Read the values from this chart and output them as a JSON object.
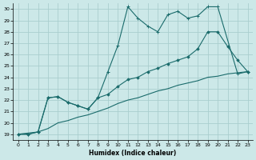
{
  "xlabel": "Humidex (Indice chaleur)",
  "bg_color": "#cce8e8",
  "grid_color": "#aacece",
  "line_color": "#1a6b6b",
  "xlim": [
    -0.5,
    23.5
  ],
  "ylim": [
    18.5,
    30.5
  ],
  "xticks": [
    0,
    1,
    2,
    3,
    4,
    5,
    6,
    7,
    8,
    9,
    10,
    11,
    12,
    13,
    14,
    15,
    16,
    17,
    18,
    19,
    20,
    21,
    22,
    23
  ],
  "yticks": [
    19,
    20,
    21,
    22,
    23,
    24,
    25,
    26,
    27,
    28,
    29,
    30
  ],
  "line1_x": [
    0,
    1,
    2,
    3,
    4,
    5,
    6,
    7,
    8,
    9,
    10,
    11,
    12,
    13,
    14,
    15,
    16,
    17,
    18,
    19,
    20,
    22,
    23
  ],
  "line1_y": [
    19.0,
    19.0,
    19.2,
    22.2,
    22.3,
    21.8,
    21.5,
    21.2,
    22.2,
    24.5,
    26.8,
    30.2,
    29.2,
    28.5,
    28.0,
    29.5,
    29.8,
    29.2,
    29.4,
    30.2,
    30.2,
    24.3,
    24.5
  ],
  "line2_x": [
    0,
    1,
    2,
    3,
    4,
    5,
    6,
    7,
    8,
    9,
    10,
    11,
    12,
    13,
    14,
    15,
    16,
    17,
    18,
    19,
    20,
    21,
    22,
    23
  ],
  "line2_y": [
    19.0,
    19.1,
    19.2,
    19.5,
    20.0,
    20.2,
    20.5,
    20.7,
    21.0,
    21.3,
    21.7,
    22.0,
    22.2,
    22.5,
    22.8,
    23.0,
    23.3,
    23.5,
    23.7,
    24.0,
    24.1,
    24.3,
    24.4,
    24.5
  ],
  "line3_x": [
    0,
    1,
    2,
    3,
    4,
    5,
    6,
    7,
    8,
    9,
    10,
    11,
    12,
    13,
    14,
    15,
    16,
    17,
    18,
    19,
    20,
    21,
    22,
    23
  ],
  "line3_y": [
    19.0,
    19.0,
    19.2,
    22.2,
    22.3,
    21.8,
    21.5,
    21.2,
    22.2,
    22.5,
    23.2,
    23.8,
    24.0,
    24.5,
    24.8,
    25.2,
    25.5,
    25.8,
    26.5,
    28.0,
    28.0,
    26.7,
    25.5,
    24.5
  ]
}
